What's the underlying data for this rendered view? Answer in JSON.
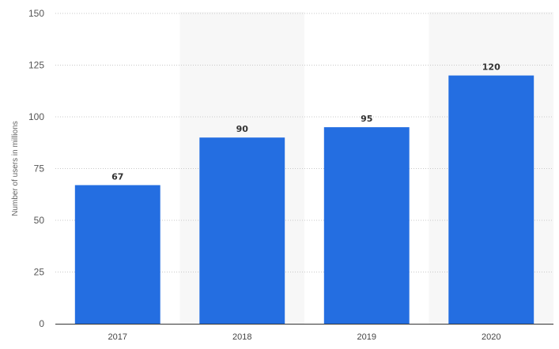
{
  "chart_data": {
    "type": "bar",
    "categories": [
      "2017",
      "2018",
      "2019",
      "2020"
    ],
    "values": [
      67,
      90,
      95,
      120
    ],
    "title": "",
    "xlabel": "",
    "ylabel": "Number of users in millions",
    "ylim": [
      0,
      150
    ],
    "yticks": [
      0,
      25,
      50,
      75,
      100,
      125,
      150
    ],
    "grid": true,
    "legend": "none",
    "colors": {
      "bar": "#246ee1",
      "alternate_band": "#f7f7f7",
      "grid": "#c8c8c8",
      "axis": "#333333"
    }
  }
}
